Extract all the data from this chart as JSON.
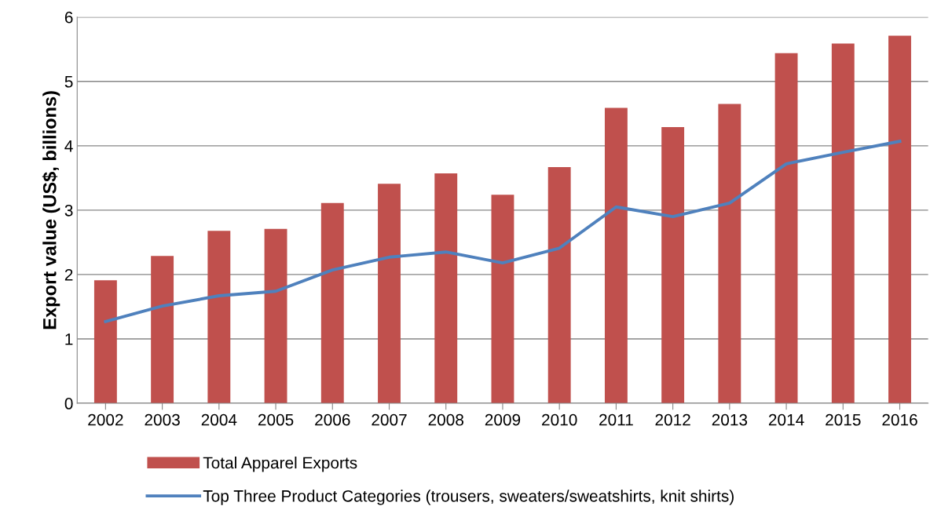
{
  "chart_data": {
    "type": "bar",
    "ylabel": "Export value (US$, billions)",
    "categories": [
      "2002",
      "2003",
      "2004",
      "2005",
      "2006",
      "2007",
      "2008",
      "2009",
      "2010",
      "2011",
      "2012",
      "2013",
      "2014",
      "2015",
      "2016"
    ],
    "series": [
      {
        "name": "Total Apparel Exports",
        "color": "#c0504d",
        "values": [
          1.91,
          2.29,
          2.68,
          2.71,
          3.11,
          3.41,
          3.57,
          3.24,
          3.67,
          4.59,
          4.29,
          4.65,
          5.44,
          5.59,
          5.71
        ]
      },
      {
        "name": "Top Three Product Categories (trousers, sweaters/sweatshirts, knit shirts)",
        "type": "line",
        "color": "#4f81bd",
        "values": [
          1.27,
          1.51,
          1.67,
          1.74,
          2.07,
          2.27,
          2.35,
          2.18,
          2.41,
          3.05,
          2.9,
          3.11,
          3.72,
          3.9,
          4.07
        ]
      }
    ],
    "ylim": [
      0,
      6
    ],
    "yticks": [
      0,
      1,
      2,
      3,
      4,
      5,
      6
    ],
    "grid": "y",
    "legend": "bottom",
    "marker": "none"
  }
}
